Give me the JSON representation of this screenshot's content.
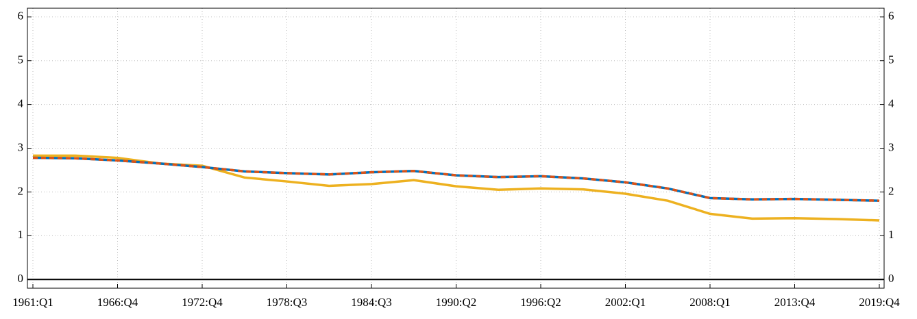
{
  "chart_data": {
    "type": "line",
    "categories": [
      "1961:Q1",
      null,
      "1966:Q4",
      null,
      "1972:Q4",
      null,
      "1978:Q3",
      null,
      "1984:Q3",
      null,
      "1990:Q2",
      null,
      "1996:Q2",
      null,
      "2002:Q1",
      null,
      "2008:Q1",
      null,
      "2013:Q4",
      null,
      "2019:Q4"
    ],
    "series": [
      {
        "color": "#edb120",
        "dashed": false,
        "values": [
          2.83,
          2.83,
          2.78,
          2.65,
          2.6,
          2.33,
          2.24,
          2.14,
          2.18,
          2.27,
          2.13,
          2.05,
          2.08,
          2.06,
          1.96,
          1.8,
          1.5,
          1.39,
          1.4,
          1.38,
          1.35
        ]
      },
      {
        "color": "#0072bd",
        "dashed": false,
        "values": [
          2.78,
          2.77,
          2.72,
          2.65,
          2.57,
          2.47,
          2.43,
          2.4,
          2.45,
          2.48,
          2.38,
          2.34,
          2.36,
          2.31,
          2.22,
          2.08,
          1.86,
          1.83,
          1.84,
          1.82,
          1.8
        ]
      },
      {
        "color": "#d95319",
        "dashed": true,
        "values": [
          2.78,
          2.77,
          2.72,
          2.65,
          2.57,
          2.47,
          2.43,
          2.4,
          2.45,
          2.48,
          2.38,
          2.34,
          2.36,
          2.31,
          2.22,
          2.08,
          1.86,
          1.83,
          1.84,
          1.82,
          1.8
        ]
      }
    ],
    "ylim": [
      -0.2,
      6.2
    ],
    "yticks": [
      0,
      1,
      2,
      3,
      4,
      5,
      6
    ],
    "grid": true,
    "right_axis": true,
    "hline": 0
  }
}
